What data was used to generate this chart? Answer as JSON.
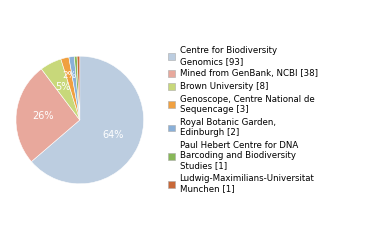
{
  "labels": [
    "Centre for Biodiversity\nGenomics [93]",
    "Mined from GenBank, NCBI [38]",
    "Brown University [8]",
    "Genoscope, Centre National de\nSequencage [3]",
    "Royal Botanic Garden,\nEdinburgh [2]",
    "Paul Hebert Centre for DNA\nBarcoding and Biodiversity\nStudies [1]",
    "Ludwig-Maximilians-Universitat\nMunchen [1]"
  ],
  "values": [
    93,
    38,
    8,
    3,
    2,
    1,
    1
  ],
  "colors": [
    "#bccde0",
    "#e8a89c",
    "#c8d87a",
    "#f0a040",
    "#8ab0d8",
    "#88b858",
    "#c86838"
  ],
  "startangle": 90,
  "figsize": [
    3.8,
    2.4
  ],
  "dpi": 100,
  "legend_fontsize": 6.2,
  "pct_fontsize": 7.0,
  "background_color": "#ffffff"
}
